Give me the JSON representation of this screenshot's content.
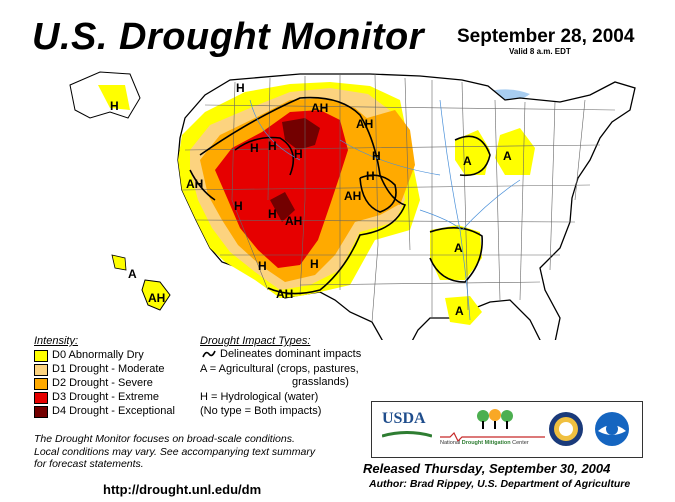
{
  "title": "U.S. Drought Monitor",
  "date": "September 28, 2004",
  "valid": "Valid 8 a.m. EDT",
  "intensity_heading": "Intensity:",
  "intensity": [
    {
      "label": "D0 Abnormally Dry",
      "color": "#ffff00"
    },
    {
      "label": "D1 Drought - Moderate",
      "color": "#fcd37f"
    },
    {
      "label": "D2 Drought - Severe",
      "color": "#ffaa00"
    },
    {
      "label": "D3 Drought - Extreme",
      "color": "#e60000"
    },
    {
      "label": "D4 Drought - Exceptional",
      "color": "#730000"
    }
  ],
  "impact_heading": "Drought Impact Types:",
  "impacts": {
    "delineates": "Delineates dominant impacts",
    "agricultural_1": "A = Agricultural (crops, pastures,",
    "agricultural_2": "grasslands)",
    "hydrological": "H = Hydrological (water)",
    "both": "(No type = Both impacts)"
  },
  "note": {
    "line1": "The Drought Monitor focuses on broad-scale conditions.",
    "line2": "Local conditions may vary.  See accompanying text summary",
    "line3": "for forecast statements."
  },
  "url": "http://drought.unl.edu/dm",
  "released": "Released Thursday, September 30, 2004",
  "author": "Author: Brad Rippey, U.S. Department of Agriculture",
  "logos": {
    "usda": "USDA",
    "ndmc_1": "National",
    "ndmc_2": "Drought Mitigation",
    "ndmc_3": "Center"
  },
  "map_labels": {
    "alaska": "H",
    "montana_nw": "H",
    "montana_ne": "AH",
    "dakota_ah": "AH",
    "dakota_h": "H",
    "ca_north_ah": "AH",
    "nv_h": "H",
    "id_h": "H",
    "wy_h1": "H",
    "wy_h2": "H",
    "ne_h": "H",
    "ne_ah": "AH",
    "ut_h": "H",
    "co_ah": "AH",
    "az_h": "H",
    "nm_h": "H",
    "sw_ah": "AH",
    "wi_a": "A",
    "mi_a": "A",
    "ar_a": "A",
    "la_a": "A",
    "hawaii_a": "A",
    "hawaii_ah": "AH"
  }
}
